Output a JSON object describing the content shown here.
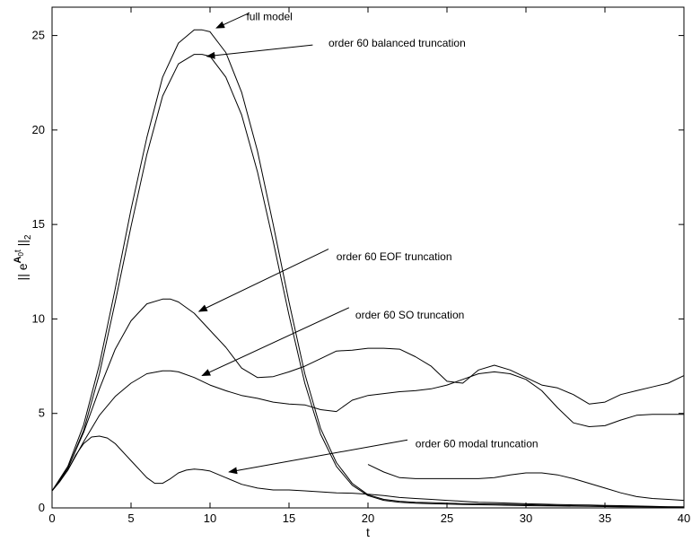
{
  "chart_data": {
    "type": "line",
    "title": "",
    "xlabel": "t",
    "ylabel_parts": {
      "base": "|| e",
      "sup_bold": "A",
      "sup_sub": "0",
      "sup_after": "t",
      "after": " ||",
      "sub": "2"
    },
    "xlim": [
      0,
      40
    ],
    "ylim": [
      0,
      26.5
    ],
    "xticks": [
      0,
      5,
      10,
      15,
      20,
      25,
      30,
      35,
      40
    ],
    "yticks": [
      0,
      5,
      10,
      15,
      20,
      25
    ],
    "grid": false,
    "legend": "none",
    "line_color": "#000000",
    "series": [
      {
        "x": [
          0,
          1,
          2,
          3,
          4,
          5,
          6,
          7,
          8,
          9,
          9.5,
          10,
          11,
          12,
          13,
          14,
          15,
          16,
          17,
          18,
          19,
          20,
          21,
          22,
          23,
          24,
          25,
          26,
          28,
          30,
          32,
          34,
          36,
          38,
          40
        ],
        "y": [
          0.9,
          2.2,
          4.4,
          7.6,
          11.6,
          15.8,
          19.6,
          22.8,
          24.6,
          25.3,
          25.3,
          25.2,
          24.1,
          22.0,
          18.9,
          15.0,
          10.9,
          7.1,
          4.2,
          2.4,
          1.3,
          0.7,
          0.45,
          0.35,
          0.3,
          0.28,
          0.25,
          0.23,
          0.2,
          0.17,
          0.13,
          0.1,
          0.08,
          0.06,
          0.05
        ]
      },
      {
        "x": [
          0,
          1,
          2,
          3,
          4,
          5,
          6,
          7,
          8,
          9,
          9.5,
          10,
          11,
          12,
          13,
          14,
          15,
          16,
          17,
          18,
          19,
          20,
          21,
          22,
          23,
          24,
          25,
          26,
          28,
          30,
          32,
          34,
          36,
          38,
          40
        ],
        "y": [
          0.9,
          2.1,
          4.1,
          7.1,
          10.9,
          14.9,
          18.7,
          21.8,
          23.5,
          24.0,
          24.0,
          23.9,
          22.8,
          20.8,
          17.8,
          14.1,
          10.2,
          6.6,
          3.9,
          2.2,
          1.2,
          0.65,
          0.4,
          0.3,
          0.25,
          0.22,
          0.2,
          0.18,
          0.15,
          0.12,
          0.1,
          0.08,
          0.06,
          0.05,
          0.04
        ]
      },
      {
        "x": [
          0,
          1,
          2,
          3,
          4,
          5,
          6,
          7,
          7.5,
          8,
          9,
          10,
          11,
          12,
          13,
          14,
          15,
          16,
          17,
          18,
          19,
          20,
          21,
          22,
          23,
          24,
          25,
          26,
          27,
          28,
          29,
          30,
          31,
          32,
          33,
          34,
          35,
          36,
          37,
          38,
          39,
          40
        ],
        "y": [
          0.9,
          2.1,
          4.0,
          6.3,
          8.4,
          9.9,
          10.8,
          11.05,
          11.05,
          10.9,
          10.3,
          9.4,
          8.5,
          7.4,
          6.9,
          6.95,
          7.2,
          7.5,
          7.9,
          8.3,
          8.35,
          8.45,
          8.45,
          8.4,
          8.0,
          7.5,
          6.7,
          6.6,
          7.3,
          7.55,
          7.3,
          6.9,
          6.5,
          6.35,
          6.0,
          5.5,
          5.6,
          6.0,
          6.2,
          6.4,
          6.6,
          7.0
        ]
      },
      {
        "x": [
          0,
          1,
          2,
          3,
          4,
          5,
          6,
          7,
          7.5,
          8,
          9,
          10,
          11,
          12,
          13,
          14,
          15,
          16,
          17,
          18,
          19,
          20,
          21,
          22,
          23,
          24,
          25,
          26,
          27,
          28,
          29,
          30,
          31,
          32,
          33,
          34,
          35,
          36,
          37,
          38,
          39,
          40
        ],
        "y": [
          0.9,
          2.0,
          3.5,
          4.9,
          5.9,
          6.6,
          7.1,
          7.25,
          7.25,
          7.2,
          6.9,
          6.5,
          6.2,
          5.95,
          5.8,
          5.6,
          5.5,
          5.45,
          5.2,
          5.1,
          5.7,
          5.95,
          6.05,
          6.15,
          6.2,
          6.3,
          6.5,
          6.8,
          7.1,
          7.2,
          7.1,
          6.8,
          6.2,
          5.3,
          4.5,
          4.3,
          4.35,
          4.65,
          4.9,
          4.95,
          4.95,
          4.95
        ]
      },
      {
        "x": [
          0,
          0.5,
          1,
          1.5,
          2,
          2.5,
          3,
          3.5,
          4,
          5,
          6,
          6.5,
          7,
          7.5,
          8,
          8.5,
          9,
          9.5,
          10,
          11,
          12,
          13,
          14,
          15,
          16,
          17,
          18,
          19,
          20,
          21,
          22,
          23,
          24,
          25,
          26,
          27,
          28,
          29,
          30,
          31,
          32,
          33,
          34,
          35,
          36,
          37,
          38,
          39,
          40
        ],
        "y": [
          0.9,
          1.4,
          2.0,
          2.8,
          3.4,
          3.75,
          3.8,
          3.7,
          3.4,
          2.5,
          1.6,
          1.3,
          1.3,
          1.55,
          1.85,
          2.0,
          2.05,
          2.02,
          1.95,
          1.6,
          1.25,
          1.05,
          0.95,
          0.95,
          0.9,
          0.85,
          0.8,
          0.78,
          0.72,
          0.65,
          0.55,
          0.5,
          0.45,
          0.4,
          0.35,
          0.3,
          0.28,
          0.25,
          0.22,
          0.2,
          0.18,
          0.16,
          0.15,
          0.13,
          0.12,
          0.1,
          0.08,
          0.06,
          0.05
        ]
      },
      {
        "x": [
          20,
          21,
          22,
          23,
          24,
          25,
          26,
          27,
          28,
          29,
          30,
          31,
          32,
          33,
          34,
          35,
          36,
          37,
          38,
          39,
          40
        ],
        "y": [
          2.3,
          1.9,
          1.6,
          1.55,
          1.55,
          1.55,
          1.55,
          1.55,
          1.6,
          1.75,
          1.85,
          1.85,
          1.75,
          1.55,
          1.3,
          1.05,
          0.8,
          0.6,
          0.5,
          0.45,
          0.4
        ]
      }
    ],
    "annotations": [
      {
        "text": "full model",
        "text_x": 12.3,
        "text_y": 26.0,
        "tail_x": 12.5,
        "tail_y": 26.2,
        "head_x": 10.4,
        "head_y": 25.4
      },
      {
        "text": "order 60 balanced truncation",
        "text_x": 17.5,
        "text_y": 24.6,
        "tail_x": 16.5,
        "tail_y": 24.5,
        "head_x": 9.8,
        "head_y": 23.9
      },
      {
        "text": "order 60 EOF truncation",
        "text_x": 18.0,
        "text_y": 13.3,
        "tail_x": 17.5,
        "tail_y": 13.7,
        "head_x": 9.3,
        "head_y": 10.4
      },
      {
        "text": "order 60 SO truncation",
        "text_x": 19.2,
        "text_y": 10.2,
        "tail_x": 18.8,
        "tail_y": 10.6,
        "head_x": 9.5,
        "head_y": 7.0
      },
      {
        "text": "order 60 modal  truncation",
        "text_x": 23.0,
        "text_y": 3.4,
        "tail_x": 22.5,
        "tail_y": 3.6,
        "head_x": 11.2,
        "head_y": 1.9
      }
    ]
  }
}
